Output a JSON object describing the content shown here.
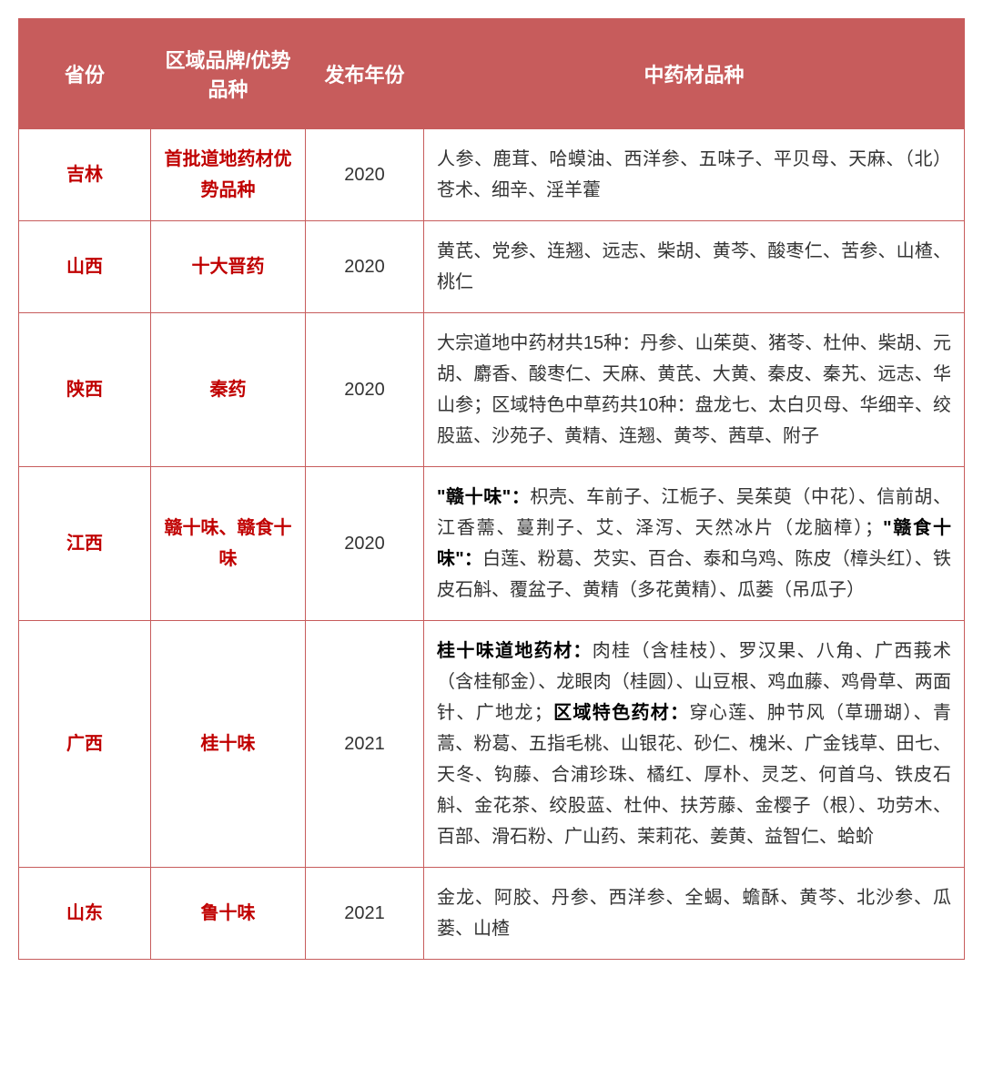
{
  "headers": {
    "province": "省份",
    "brand": "区域品牌/优势品种",
    "year": "发布年份",
    "species": "中药材品种"
  },
  "rows": [
    {
      "province": "吉林",
      "brand": "首批道地药材优势品种",
      "year": "2020",
      "species_plain": "人参、鹿茸、哈蟆油、西洋参、五味子、平贝母、天麻、（北）苍术、细辛、淫羊藿"
    },
    {
      "province": "山西",
      "brand": "十大晋药",
      "year": "2020",
      "species_plain": "黄芪、党参、连翘、远志、柴胡、黄芩、酸枣仁、苦参、山楂、桃仁"
    },
    {
      "province": "陕西",
      "brand": "秦药",
      "year": "2020",
      "species_plain": "大宗道地中药材共15种：丹参、山茱萸、猪苓、杜仲、柴胡、元胡、麝香、酸枣仁、天麻、黄芪、大黄、秦皮、秦艽、远志、华山参；区域特色中草药共10种：盘龙七、太白贝母、华细辛、绞股蓝、沙苑子、黄精、连翘、黄芩、茜草、附子"
    },
    {
      "province": "江西",
      "brand": "赣十味、赣食十味",
      "year": "2020",
      "species_segments": [
        {
          "text": "\"赣十味\"：",
          "bold": true
        },
        {
          "text": "枳壳、车前子、江栀子、吴茱萸（中花）、信前胡、江香薷、蔓荆子、艾、泽泻、天然冰片（龙脑樟）；",
          "bold": false
        },
        {
          "text": "\"赣食十味\"：",
          "bold": true
        },
        {
          "text": "白莲、粉葛、芡实、百合、泰和乌鸡、陈皮（樟头红）、铁皮石斛、覆盆子、黄精（多花黄精）、瓜蒌（吊瓜子）",
          "bold": false
        }
      ]
    },
    {
      "province": "广西",
      "brand": "桂十味",
      "year": "2021",
      "species_segments": [
        {
          "text": "桂十味道地药材：",
          "bold": true
        },
        {
          "text": "肉桂（含桂枝）、罗汉果、八角、广西莪术（含桂郁金）、龙眼肉（桂圆）、山豆根、鸡血藤、鸡骨草、两面针、广地龙；",
          "bold": false
        },
        {
          "text": "区域特色药材：",
          "bold": true
        },
        {
          "text": "穿心莲、肿节风（草珊瑚）、青蒿、粉葛、五指毛桃、山银花、砂仁、槐米、广金钱草、田七、天冬、钩藤、合浦珍珠、橘红、厚朴、灵芝、何首乌、铁皮石斛、金花茶、绞股蓝、杜仲、扶芳藤、金樱子（根）、功劳木、百部、滑石粉、广山药、茉莉花、姜黄、益智仁、蛤蚧",
          "bold": false
        }
      ]
    },
    {
      "province": "山东",
      "brand": "鲁十味",
      "year": "2021",
      "species_plain": "金龙、阿胶、丹参、西洋参、全蝎、蟾酥、黄芩、北沙参、瓜蒌、山楂"
    }
  ]
}
